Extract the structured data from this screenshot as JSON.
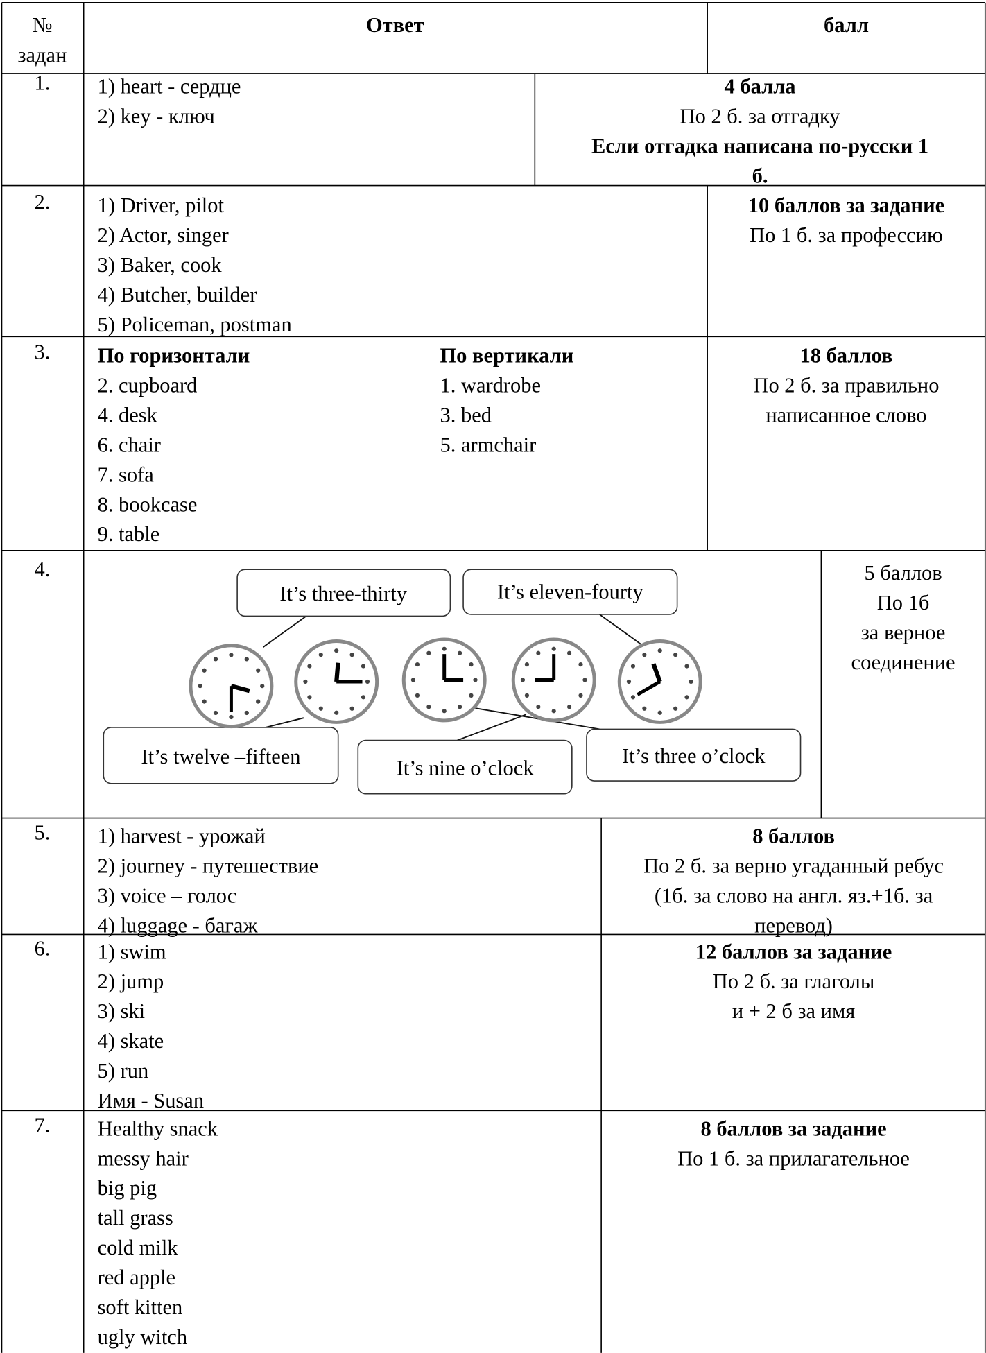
{
  "header": {
    "number_lines": [
      "№",
      "задан"
    ],
    "answer": "Ответ",
    "score": "балл"
  },
  "rows": [
    {
      "number": "1.",
      "answer": [
        "1) heart - сердце",
        "2) key - ключ"
      ],
      "score": [
        {
          "text": "4 балла",
          "bold": true
        },
        {
          "text": "По 2 б. за отгадку",
          "bold": false
        },
        {
          "text": "Если отгадка написана по-русски 1",
          "bold": true
        },
        {
          "text": "б.",
          "bold": true
        }
      ]
    },
    {
      "number": "2.",
      "answer": [
        "1) Driver, pilot",
        "2) Actor, singer",
        "3) Baker, cook",
        "4) Butcher, builder",
        "5) Policeman, postman"
      ],
      "score": [
        {
          "text": "10 баллов за задание",
          "bold": true
        },
        {
          "text": "По 1 б. за профессию",
          "bold": false
        }
      ]
    },
    {
      "number": "3.",
      "answer_heading": "По горизонтали",
      "answer": [
        "2. cupboard",
        "4. desk",
        "6. chair",
        "7. sofa",
        "8. bookcase",
        "9. table"
      ],
      "answer2_heading": "По вертикали",
      "answer2": [
        "1. wardrobe",
        "3. bed",
        "5. armchair"
      ],
      "score": [
        {
          "text": "18 баллов",
          "bold": true
        },
        {
          "text": "По 2 б. за правильно",
          "bold": false
        },
        {
          "text": "написанное слово",
          "bold": false
        }
      ]
    },
    {
      "number": "4.",
      "labels": [
        "It’s three-thirty",
        "It’s eleven-fourty",
        "It’s twelve –fifteen",
        "It’s nine o’clock",
        "It’s three o’clock"
      ],
      "score": [
        {
          "text": "5 баллов",
          "bold": false
        },
        {
          "text": "По 1б",
          "bold": false
        },
        {
          "text": "за верное",
          "bold": false
        },
        {
          "text": "соединение",
          "bold": false
        }
      ]
    },
    {
      "number": "5.",
      "answer": [
        "1) harvest - урожай",
        "2) journey - путешествие",
        "3) voice – голос",
        "4) luggage - багаж"
      ],
      "score": [
        {
          "text": "8 баллов",
          "bold": true
        },
        {
          "text": "По 2 б. за верно угаданный ребус",
          "bold": false
        },
        {
          "text": "(1б. за слово на англ. яз.+1б. за",
          "bold": false
        },
        {
          "text": "перевод)",
          "bold": false
        }
      ]
    },
    {
      "number": "6.",
      "answer": [
        "1) swim",
        "2) jump",
        "3) ski",
        "4) skate",
        "5) run",
        "Имя - Susan"
      ],
      "score": [
        {
          "text": "12 баллов за задание",
          "bold": true
        },
        {
          "text": "По 2 б. за глаголы",
          "bold": false
        },
        {
          "text": "и + 2 б за имя",
          "bold": false
        }
      ]
    },
    {
      "number": "7.",
      "answer": [
        "Healthy snack",
        "messy hair",
        "big pig",
        "tall grass",
        "cold milk",
        "red apple",
        "soft kitten",
        "ugly witch"
      ],
      "score": [
        {
          "text": "8 баллов за задание",
          "bold": true
        },
        {
          "text": "По 1 б. за прилагательное",
          "bold": false
        }
      ]
    }
  ]
}
